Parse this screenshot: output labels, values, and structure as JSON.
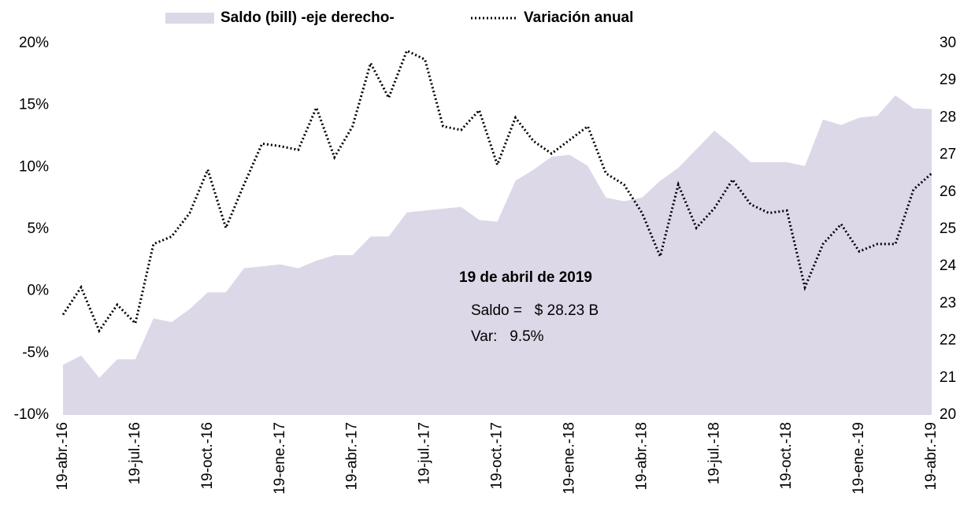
{
  "chart_data": {
    "type": "line",
    "series": [
      {
        "name": "Saldo (bill) -eje derecho-",
        "color": "#ddd8e8",
        "style": "area",
        "axis": "y2",
        "values": [
          21.35,
          21.6,
          21.0,
          21.5,
          21.5,
          22.6,
          22.5,
          22.85,
          23.3,
          23.3,
          23.95,
          24.0,
          24.05,
          23.95,
          24.15,
          24.3,
          24.3,
          24.8,
          24.8,
          25.45,
          25.5,
          25.55,
          25.6,
          25.25,
          25.2,
          26.3,
          26.6,
          26.95,
          27.0,
          26.7,
          25.85,
          25.75,
          25.85,
          26.3,
          26.65,
          27.15,
          27.65,
          27.25,
          26.8,
          26.8,
          26.8,
          26.7,
          27.95,
          27.8,
          28.0,
          28.05,
          28.6,
          28.25,
          28.23
        ]
      },
      {
        "name": "Variación anual",
        "color": "#000000",
        "style": "dotted",
        "values": [
          -1.9,
          0.3,
          -3.2,
          -1.1,
          -2.6,
          3.8,
          4.4,
          6.3,
          9.8,
          5.1,
          8.6,
          11.9,
          11.7,
          11.4,
          14.8,
          10.8,
          13.3,
          18.4,
          15.6,
          19.4,
          18.7,
          13.3,
          13.0,
          14.6,
          10.2,
          14.0,
          12.1,
          11.1,
          12.2,
          13.3,
          9.5,
          8.6,
          6.3,
          2.8,
          8.6,
          5.1,
          6.7,
          9.0,
          7.0,
          6.3,
          6.5,
          0.3,
          3.8,
          5.4,
          3.2,
          3.8,
          3.8,
          8.2,
          9.5
        ]
      }
    ],
    "categories": [
      "19-abr.-16",
      null,
      null,
      null,
      "19-jul.-16",
      null,
      null,
      null,
      "19-oct.-16",
      null,
      null,
      null,
      "19-ene.-17",
      null,
      null,
      null,
      "19-abr.-17",
      null,
      null,
      null,
      "19-jul.-17",
      null,
      null,
      null,
      "19-oct.-17",
      null,
      null,
      null,
      "19-ene.-18",
      null,
      null,
      null,
      "19-abr.-18",
      null,
      null,
      null,
      "19-jul.-18",
      null,
      null,
      null,
      "19-oct.-18",
      null,
      null,
      null,
      "19-ene.-19",
      null,
      null,
      null,
      "19-abr.-19"
    ],
    "ylim": [
      -10,
      20
    ],
    "yticks": [
      {
        "value": -10,
        "label": "-10%"
      },
      {
        "value": -5,
        "label": "-5%"
      },
      {
        "value": 0,
        "label": "0%"
      },
      {
        "value": 5,
        "label": "5%"
      },
      {
        "value": 10,
        "label": "10%"
      },
      {
        "value": 15,
        "label": "15%"
      },
      {
        "value": 20,
        "label": "20%"
      }
    ],
    "y2lim": [
      20,
      30
    ],
    "y2ticks": [
      20,
      21,
      22,
      23,
      24,
      25,
      26,
      27,
      28,
      29,
      30
    ],
    "annotations": [
      "19 de abril de 2019",
      "Saldo =   $ 28.23 B",
      "Var:   9.5%"
    ],
    "legend": "top"
  }
}
